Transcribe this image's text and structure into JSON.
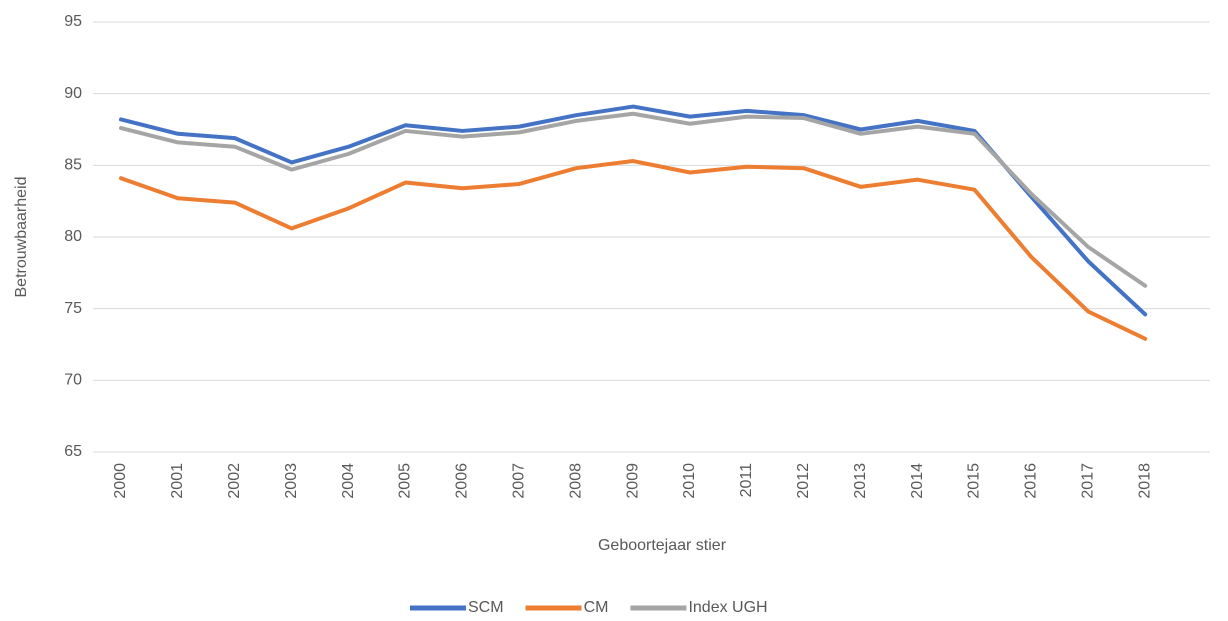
{
  "chart_data": {
    "type": "line",
    "x_label": "Geboortejaar stier",
    "y_label": "Betrouwbaarheid",
    "categories": [
      "2000",
      "2001",
      "2002",
      "2003",
      "2004",
      "2005",
      "2006",
      "2007",
      "2008",
      "2009",
      "2010",
      "2011",
      "2012",
      "2013",
      "2014",
      "2015",
      "2016",
      "2017",
      "2018"
    ],
    "series": [
      {
        "name": "SCM",
        "color": "#4472c4",
        "values": [
          88.2,
          87.2,
          86.9,
          85.2,
          86.3,
          87.8,
          87.4,
          87.7,
          88.5,
          89.1,
          88.4,
          88.8,
          88.5,
          87.5,
          88.1,
          87.4,
          82.8,
          78.3,
          74.6
        ]
      },
      {
        "name": "CM",
        "color": "#ed7d31",
        "values": [
          84.1,
          82.7,
          82.4,
          80.6,
          82.0,
          83.8,
          83.4,
          83.7,
          84.8,
          85.3,
          84.5,
          84.9,
          84.8,
          83.5,
          84.0,
          83.3,
          78.6,
          74.8,
          72.9
        ]
      },
      {
        "name": "Index UGH",
        "color": "#a5a5a5",
        "values": [
          87.6,
          86.6,
          86.3,
          84.7,
          85.8,
          87.4,
          87.0,
          87.3,
          88.1,
          88.6,
          87.9,
          88.4,
          88.3,
          87.2,
          87.7,
          87.2,
          83.0,
          79.3,
          76.6
        ]
      }
    ],
    "ylim": [
      65,
      95
    ],
    "yticks": [
      65,
      70,
      75,
      80,
      85,
      90,
      95
    ],
    "grid": true,
    "legend": "bottom"
  }
}
